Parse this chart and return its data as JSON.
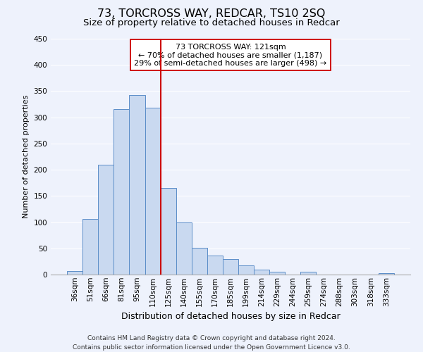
{
  "title": "73, TORCROSS WAY, REDCAR, TS10 2SQ",
  "subtitle": "Size of property relative to detached houses in Redcar",
  "xlabel": "Distribution of detached houses by size in Redcar",
  "ylabel": "Number of detached properties",
  "categories": [
    "36sqm",
    "51sqm",
    "66sqm",
    "81sqm",
    "95sqm",
    "110sqm",
    "125sqm",
    "140sqm",
    "155sqm",
    "170sqm",
    "185sqm",
    "199sqm",
    "214sqm",
    "229sqm",
    "244sqm",
    "259sqm",
    "274sqm",
    "288sqm",
    "303sqm",
    "318sqm",
    "333sqm"
  ],
  "values": [
    7,
    106,
    210,
    316,
    343,
    319,
    165,
    99,
    51,
    36,
    30,
    18,
    9,
    5,
    0,
    5,
    0,
    0,
    0,
    0,
    3
  ],
  "bar_color": "#c9d9f0",
  "bar_edge_color": "#5b8dc8",
  "bar_edge_width": 0.7,
  "vline_color": "#cc0000",
  "vline_x_index": 5.5,
  "annotation_title": "73 TORCROSS WAY: 121sqm",
  "annotation_line1": "← 70% of detached houses are smaller (1,187)",
  "annotation_line2": "29% of semi-detached houses are larger (498) →",
  "annotation_box_color": "#ffffff",
  "annotation_box_edge": "#cc0000",
  "ylim": [
    0,
    450
  ],
  "yticks": [
    0,
    50,
    100,
    150,
    200,
    250,
    300,
    350,
    400,
    450
  ],
  "background_color": "#eef2fc",
  "grid_color": "#ffffff",
  "footer_line1": "Contains HM Land Registry data © Crown copyright and database right 2024.",
  "footer_line2": "Contains public sector information licensed under the Open Government Licence v3.0.",
  "title_fontsize": 11.5,
  "subtitle_fontsize": 9.5,
  "xlabel_fontsize": 9,
  "ylabel_fontsize": 8,
  "tick_fontsize": 7.5,
  "annotation_fontsize": 8,
  "footer_fontsize": 6.5
}
